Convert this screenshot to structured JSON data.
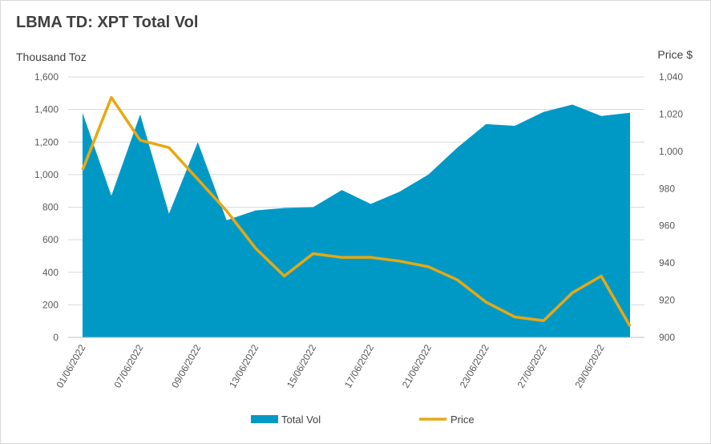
{
  "chart_data": {
    "type": "area",
    "title": "LBMA TD: XPT Total Vol",
    "ylabel": "Thousand Toz",
    "y2label": "Price $",
    "ylim": [
      0,
      1600
    ],
    "y2lim": [
      900,
      1040
    ],
    "yticks": [
      "0",
      "200",
      "400",
      "600",
      "800",
      "1,000",
      "1,200",
      "1,400",
      "1,600"
    ],
    "y2ticks": [
      "900",
      "920",
      "940",
      "960",
      "980",
      "1,000",
      "1,020",
      "1,040"
    ],
    "x_tick_labels": [
      "01/06/2022",
      "07/06/2022",
      "09/06/2022",
      "13/06/2022",
      "15/06/2022",
      "17/06/2022",
      "21/06/2022",
      "23/06/2022",
      "27/06/2022",
      "29/06/2022"
    ],
    "x_tick_positions": [
      0,
      2,
      4,
      6,
      8,
      10,
      12,
      14,
      16,
      18
    ],
    "grid": true,
    "legend_position": "bottom",
    "series": [
      {
        "name": "Total Vol",
        "type": "area",
        "axis": "left",
        "color": "#0099c6",
        "values": [
          1380,
          870,
          1370,
          760,
          1200,
          720,
          780,
          795,
          800,
          905,
          820,
          895,
          1000,
          1165,
          1310,
          1300,
          1385,
          1430,
          1360,
          1380
        ]
      },
      {
        "name": "Price",
        "type": "line",
        "axis": "right",
        "color": "#e8a812",
        "values": [
          990,
          1029,
          1006,
          1002,
          985,
          968,
          948,
          933,
          945,
          943,
          943,
          941,
          938,
          931,
          919,
          911,
          909,
          924,
          933,
          906
        ]
      }
    ]
  }
}
